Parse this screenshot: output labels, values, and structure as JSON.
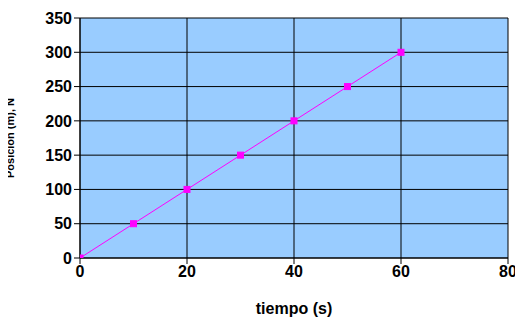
{
  "chart_data": {
    "type": "line",
    "x_label": "tiempo (s)",
    "y_label": "Posición (m), N",
    "x": [
      0,
      10,
      20,
      30,
      40,
      50,
      60
    ],
    "values": [
      0,
      50,
      100,
      150,
      200,
      250,
      300
    ],
    "color": "#ff00ff",
    "marker": "square",
    "xlim": [
      0,
      80
    ],
    "xticks": [
      0,
      20,
      40,
      60,
      80
    ],
    "ylim": [
      0,
      350
    ],
    "yticks": [
      0,
      50,
      100,
      150,
      200,
      250,
      300,
      350
    ],
    "grid": true
  }
}
